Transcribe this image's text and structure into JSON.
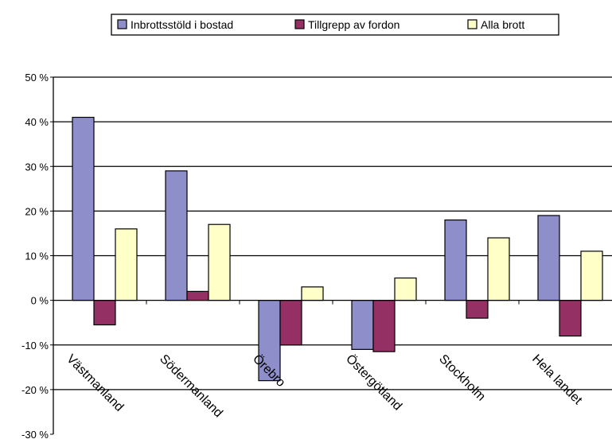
{
  "chart_data": {
    "type": "bar",
    "categories": [
      "Västmanland",
      "Södermanland",
      "Örebro",
      "Östergötland",
      "Stockholm",
      "Hela landet"
    ],
    "series": [
      {
        "name": "Inbrottsstöld i bostad",
        "color": "#8E8ECB",
        "values": [
          41,
          29,
          -18,
          -11,
          18,
          19
        ]
      },
      {
        "name": "Tillgrepp av fordon",
        "color": "#953065",
        "values": [
          -5.5,
          2,
          -10,
          -11.5,
          -4,
          -8
        ]
      },
      {
        "name": "Alla brott",
        "color": "#FFFFC8",
        "values": [
          16,
          17,
          3,
          5,
          14,
          11
        ]
      }
    ],
    "y_ticks": [
      "50 %",
      "40 %",
      "30 %",
      "20 %",
      "10 %",
      "0 %",
      "-10 %",
      "-20 %",
      "-30 %"
    ],
    "ylim": [
      -30,
      50
    ],
    "grid": true,
    "legend_position": "top-center",
    "title": "",
    "xlabel": "",
    "ylabel": ""
  }
}
